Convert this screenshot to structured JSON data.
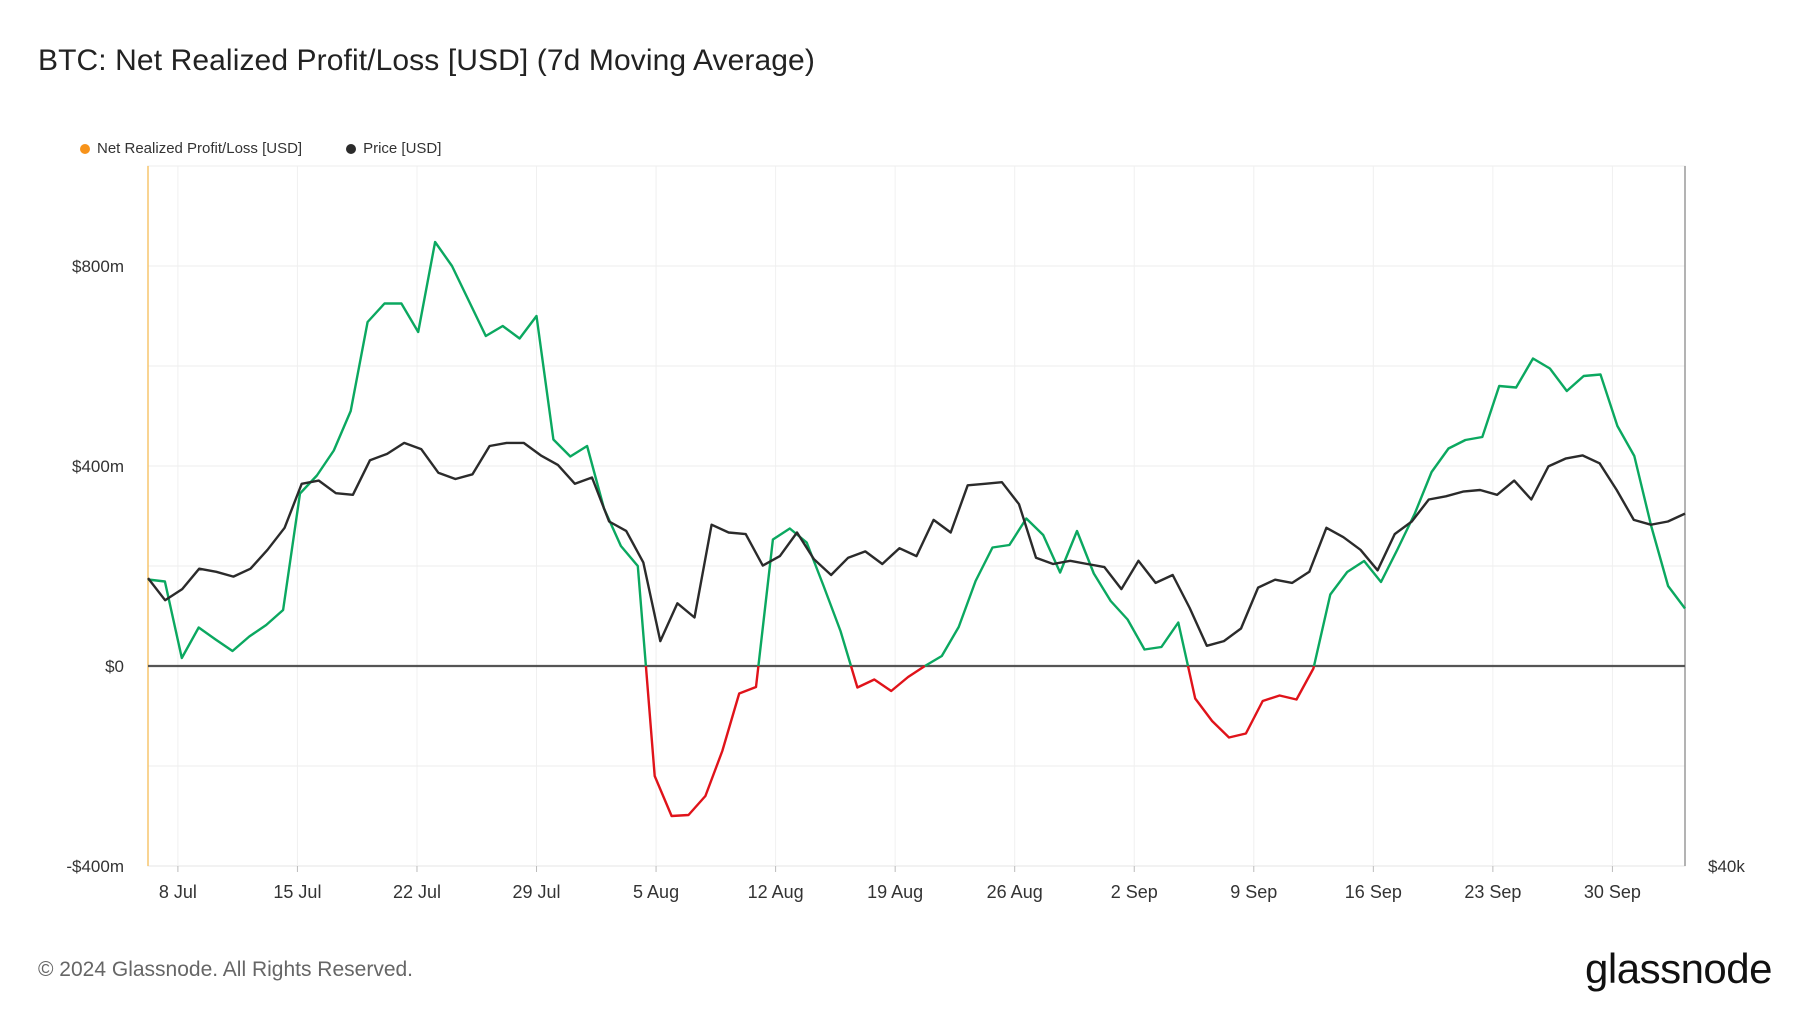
{
  "chart_data": {
    "type": "line",
    "title": "BTC: Net Realized Profit/Loss [USD] (7d Moving Average)",
    "legend": [
      {
        "label": "Net Realized Profit/Loss [USD]",
        "color": "#f7931a"
      },
      {
        "label": "Price [USD]",
        "color": "#2b2b2b"
      }
    ],
    "x_tick_labels": [
      "8 Jul",
      "15 Jul",
      "22 Jul",
      "29 Jul",
      "5 Aug",
      "12 Aug",
      "19 Aug",
      "26 Aug",
      "2 Sep",
      "9 Sep",
      "16 Sep",
      "23 Sep",
      "30 Sep"
    ],
    "x_range_days": [
      0,
      90
    ],
    "x_tick_days": [
      1.75,
      8.75,
      15.75,
      22.75,
      29.75,
      36.75,
      43.75,
      50.75,
      57.75,
      64.75,
      71.75,
      78.75,
      85.75
    ],
    "y_left": {
      "tick_labels": [
        "$800m",
        "$400m",
        "$0",
        "-$400m"
      ],
      "tick_values": [
        800,
        400,
        0,
        -400
      ],
      "range": [
        -400,
        1000
      ],
      "unit": "USD millions"
    },
    "y_right": {
      "tick_labels": [
        "$40k"
      ]
    },
    "positive_color": "#0ba860",
    "negative_color": "#e0131a",
    "price_color": "#2b2b2b",
    "series": [
      {
        "name": "Net Realized Profit/Loss [USD]",
        "values": [
          173,
          169,
          16,
          77,
          53,
          30,
          59,
          82,
          112,
          345,
          381,
          431,
          510,
          688,
          725,
          725,
          668,
          848,
          800,
          730,
          660,
          680,
          655,
          700,
          453,
          419,
          440,
          315,
          240,
          200,
          -220,
          -300,
          -298,
          -260,
          -170,
          -55,
          -42,
          253,
          275,
          247,
          160,
          70,
          -43,
          -27,
          -50,
          -22,
          0,
          20,
          78,
          170,
          237,
          242,
          295,
          262,
          187,
          270,
          185,
          130,
          93,
          33,
          38,
          87,
          -65,
          -110,
          -143,
          -135,
          -70,
          -59,
          -67,
          -5,
          143,
          188,
          210,
          168,
          235,
          305,
          388,
          435,
          452,
          458,
          560,
          557,
          615,
          595,
          550,
          580,
          583,
          480,
          420,
          280,
          160,
          115
        ]
      },
      {
        "name": "Price [USD]",
        "values": [
          58300,
          56900,
          57600,
          58900,
          58700,
          58400,
          58900,
          60100,
          61500,
          64300,
          64500,
          63700,
          63600,
          65800,
          66200,
          66900,
          66500,
          65000,
          64600,
          64900,
          66700,
          66900,
          66900,
          66100,
          65500,
          64300,
          64700,
          61900,
          61300,
          59300,
          54300,
          56700,
          55800,
          61700,
          61200,
          61100,
          59100,
          59700,
          61200,
          59500,
          58500,
          59600,
          60000,
          59200,
          60200,
          59700,
          62000,
          61200,
          64200,
          64300,
          64400,
          63000,
          59600,
          59200,
          59400,
          59200,
          59000,
          57600,
          59400,
          58000,
          58500,
          56400,
          54000,
          54300,
          55100,
          57700,
          58200,
          58000,
          58700,
          61500,
          60900,
          60100,
          58800,
          61100,
          61900,
          63300,
          63500,
          63800,
          63900,
          63600,
          64500,
          63300,
          65400,
          65900,
          66100,
          65600,
          63900,
          62000,
          61700,
          61900,
          62400
        ]
      }
    ],
    "price_axis_range": [
      40000,
      84500
    ]
  },
  "footer": {
    "copyright": "© 2024 Glassnode. All Rights Reserved.",
    "logo": "glassnode"
  }
}
